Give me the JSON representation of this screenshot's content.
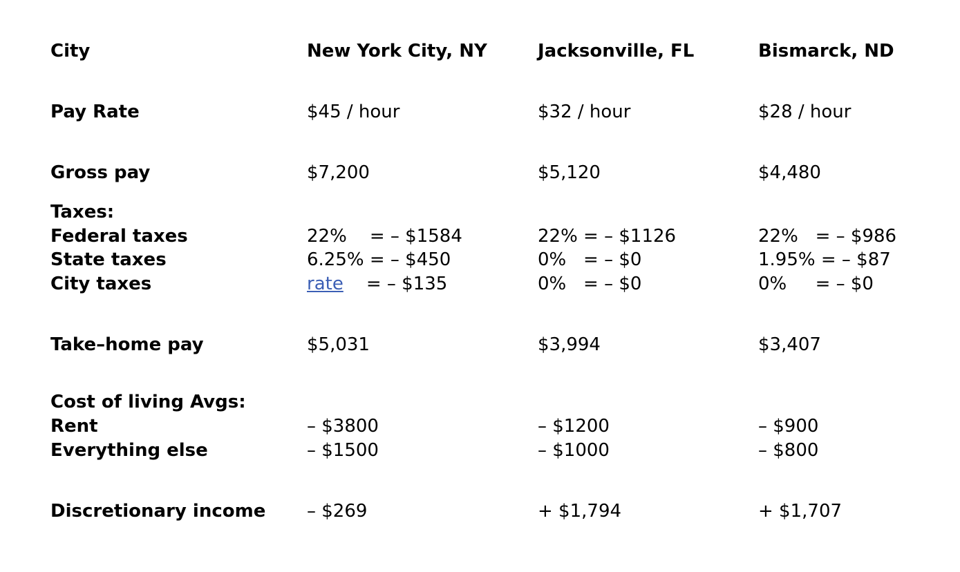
{
  "table": {
    "header": {
      "row_label": "City",
      "cities": [
        "New York City, NY",
        "Jacksonville, FL",
        "Bismarck, ND"
      ]
    },
    "pay_rate": {
      "label": "Pay Rate",
      "values": [
        "$45 / hour",
        "$32 / hour",
        "$28 / hour"
      ]
    },
    "gross_pay": {
      "label": "Gross pay",
      "values": [
        "$7,200",
        "$5,120",
        "$4,480"
      ]
    },
    "taxes": {
      "section_label": "Taxes:",
      "federal": {
        "label": "Federal taxes",
        "values": [
          "22%    = – $1584",
          "22% = – $1126",
          "22%   = – $986"
        ]
      },
      "state": {
        "label": "State taxes",
        "values": [
          "6.25% = – $450",
          "0%   = – $0",
          "1.95% = – $87"
        ]
      },
      "city": {
        "label": "City taxes",
        "nyc_link_text": "rate",
        "nyc_amount": "    = – $135",
        "values": [
          "",
          "0%   = – $0",
          "0%     = – $0"
        ]
      }
    },
    "take_home": {
      "label": "Take–home pay",
      "values": [
        "$5,031",
        "$3,994",
        "$3,407"
      ]
    },
    "cost_of_living": {
      "section_label": "Cost of living Avgs:",
      "rent": {
        "label": "Rent",
        "values": [
          "– $3800",
          "– $1200",
          "– $900"
        ]
      },
      "everything_else": {
        "label": "Everything else",
        "values": [
          "– $1500",
          "– $1000",
          "– $800"
        ]
      }
    },
    "discretionary": {
      "label": "Discretionary income",
      "values": [
        "– $269",
        "+ $1,794",
        "+ $1,707"
      ]
    }
  },
  "colors": {
    "text": "#000000",
    "link": "#3c5fb5",
    "background": "#ffffff"
  }
}
